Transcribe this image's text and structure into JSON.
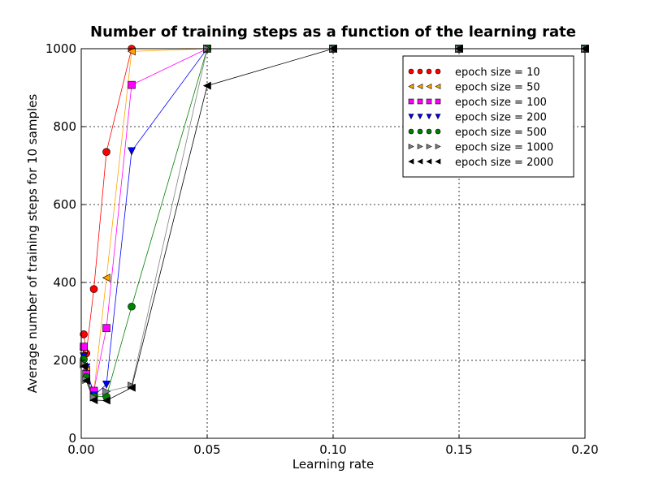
{
  "chart_data": {
    "type": "line",
    "title": "Number of training steps as a function of the learning rate",
    "xlabel": "Learning rate",
    "ylabel": "Average number of training steps for 10 samples",
    "xlim": [
      0.0,
      0.2
    ],
    "ylim": [
      0,
      1000
    ],
    "x_ticks": [
      "0.00",
      "0.05",
      "0.10",
      "0.15",
      "0.20"
    ],
    "y_ticks": [
      "0",
      "200",
      "400",
      "600",
      "800",
      "1000"
    ],
    "grid": true,
    "legend_position": "top-right",
    "series": [
      {
        "name": "epoch size = 10",
        "color": "#ff0000",
        "marker": "circle",
        "x": [
          0.001,
          0.002,
          0.005,
          0.01,
          0.02,
          0.05,
          0.1,
          0.15,
          0.2
        ],
        "y": [
          267,
          218,
          383,
          735,
          1000,
          1000,
          1000,
          1000,
          1000
        ]
      },
      {
        "name": "epoch size = 50",
        "color": "#ffa500",
        "marker": "triangle-left",
        "x": [
          0.001,
          0.002,
          0.005,
          0.01,
          0.02,
          0.05,
          0.1,
          0.15,
          0.2
        ],
        "y": [
          228,
          175,
          118,
          412,
          993,
          1000,
          1000,
          1000,
          1000
        ]
      },
      {
        "name": "epoch size = 100",
        "color": "#ff00ff",
        "marker": "square",
        "x": [
          0.001,
          0.002,
          0.005,
          0.01,
          0.02,
          0.05,
          0.1,
          0.15,
          0.2
        ],
        "y": [
          235,
          165,
          122,
          283,
          907,
          1000,
          1000,
          1000,
          1000
        ]
      },
      {
        "name": "epoch size = 200",
        "color": "#0000ff",
        "marker": "triangle-down",
        "x": [
          0.001,
          0.002,
          0.005,
          0.01,
          0.02,
          0.05,
          0.1,
          0.15,
          0.2
        ],
        "y": [
          210,
          182,
          110,
          138,
          737,
          1000,
          1000,
          1000,
          1000
        ]
      },
      {
        "name": "epoch size = 500",
        "color": "#008000",
        "marker": "circle",
        "x": [
          0.001,
          0.002,
          0.005,
          0.01,
          0.02,
          0.05,
          0.1,
          0.15,
          0.2
        ],
        "y": [
          203,
          157,
          107,
          107,
          338,
          1000,
          1000,
          1000,
          1000
        ]
      },
      {
        "name": "epoch size = 1000",
        "color": "#808080",
        "marker": "triangle-right",
        "x": [
          0.001,
          0.002,
          0.005,
          0.01,
          0.02,
          0.05,
          0.1,
          0.15,
          0.2
        ],
        "y": [
          190,
          150,
          105,
          120,
          135,
          1000,
          1000,
          1000,
          1000
        ]
      },
      {
        "name": "epoch size = 2000",
        "color": "#000000",
        "marker": "triangle-left",
        "x": [
          0.001,
          0.002,
          0.005,
          0.01,
          0.02,
          0.05,
          0.1,
          0.15,
          0.2
        ],
        "y": [
          185,
          148,
          98,
          97,
          130,
          905,
          1000,
          1000,
          1000
        ]
      }
    ]
  }
}
